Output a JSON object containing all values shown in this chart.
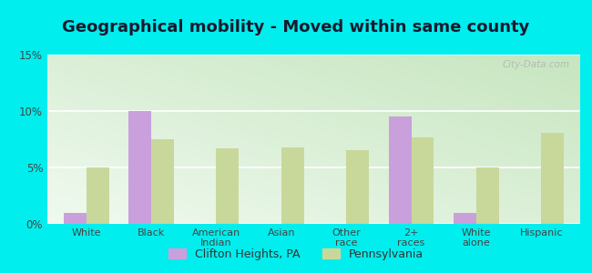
{
  "title": "Geographical mobility - Moved within same county",
  "categories": [
    "White",
    "Black",
    "American\nIndian",
    "Asian",
    "Other\nrace",
    "2+\nraces",
    "White\nalone",
    "Hispanic"
  ],
  "clifton_values": [
    1.0,
    10.0,
    0.0,
    0.0,
    0.0,
    9.5,
    1.0,
    0.0
  ],
  "pennsylvania_values": [
    5.0,
    7.5,
    6.7,
    6.8,
    6.5,
    7.7,
    5.0,
    8.1
  ],
  "clifton_color": "#c9a0dc",
  "pennsylvania_color": "#c8d89a",
  "ylim": [
    0,
    15
  ],
  "yticks": [
    0,
    5,
    10,
    15
  ],
  "yticklabels": [
    "0%",
    "5%",
    "10%",
    "15%"
  ],
  "bg_top_right": "#c8e6c0",
  "bg_bottom_left": "#f0faf0",
  "outer_background": "#00eeee",
  "legend_labels": [
    "Clifton Heights, PA",
    "Pennsylvania"
  ],
  "title_fontsize": 13,
  "bar_width": 0.35
}
